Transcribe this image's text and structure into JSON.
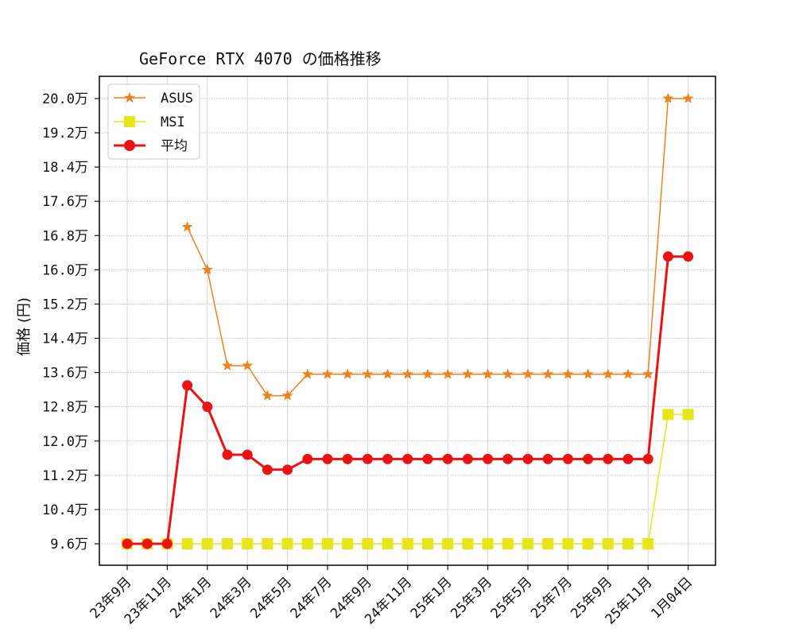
{
  "chart_data": {
    "type": "line",
    "title": "GeForce RTX 4070 の価格推移",
    "xlabel": "",
    "ylabel": "価格 (円)",
    "ylim": [
      9.1,
      20.5
    ],
    "y_unit": "万",
    "yticks": [
      9.6,
      10.4,
      11.2,
      12.0,
      12.8,
      13.6,
      14.4,
      15.2,
      16.0,
      16.8,
      17.6,
      18.4,
      19.2,
      20.0
    ],
    "ytick_labels": [
      "9.6万",
      "10.4万",
      "11.2万",
      "12.0万",
      "12.8万",
      "13.6万",
      "14.4万",
      "15.2万",
      "16.0万",
      "16.8万",
      "17.6万",
      "18.4万",
      "19.2万",
      "20.0万"
    ],
    "xtick_indices": [
      0,
      2,
      4,
      6,
      8,
      10,
      12,
      14,
      16,
      18,
      20,
      22,
      24,
      26,
      28
    ],
    "xtick_labels": [
      "23年9月",
      "23年11月",
      "24年1月",
      "24年3月",
      "24年5月",
      "24年7月",
      "24年9月",
      "24年11月",
      "25年1月",
      "25年3月",
      "25年5月",
      "25年7月",
      "25年9月",
      "25年11月",
      "1月04日"
    ],
    "x": [
      "23年9月",
      "23年10月",
      "23年11月",
      "23年12月",
      "24年1月",
      "24年2月",
      "24年3月",
      "24年4月",
      "24年5月",
      "24年6月",
      "24年7月",
      "24年8月",
      "24年9月",
      "24年10月",
      "24年11月",
      "24年12月",
      "25年1月",
      "25年2月",
      "25年3月",
      "25年4月",
      "25年5月",
      "25年6月",
      "25年7月",
      "25年8月",
      "25年9月",
      "25年10月",
      "25年11月",
      "25年12月",
      "1月04日"
    ],
    "x_positions": [
      160,
      185.2,
      210.4,
      235.6,
      260.8,
      286,
      311.2,
      336.4,
      361.6,
      386.8,
      412,
      437.2,
      462.4,
      487.6,
      512.8,
      538,
      563.2,
      588.4,
      613.6,
      638.8,
      664,
      689.2,
      714.4,
      739.6,
      764.8,
      790,
      815.2,
      840.4,
      865.6
    ],
    "series": [
      {
        "name": "ASUS",
        "color": "#f0821e",
        "marker": "star",
        "line_width": 1.5,
        "values": [
          null,
          null,
          null,
          17.0,
          16.0,
          13.76,
          13.76,
          13.06,
          13.06,
          13.56,
          13.56,
          13.56,
          13.56,
          13.56,
          13.56,
          13.56,
          13.56,
          13.56,
          13.56,
          13.56,
          13.56,
          13.56,
          13.56,
          13.56,
          13.56,
          13.56,
          13.56,
          20.0,
          20.0
        ]
      },
      {
        "name": "MSI",
        "color": "#e6e619",
        "marker": "square",
        "line_width": 1.5,
        "values": [
          9.6,
          9.6,
          9.6,
          9.6,
          9.6,
          9.6,
          9.6,
          9.6,
          9.6,
          9.6,
          9.6,
          9.6,
          9.6,
          9.6,
          9.6,
          9.6,
          9.6,
          9.6,
          9.6,
          9.6,
          9.6,
          9.6,
          9.6,
          9.6,
          9.6,
          9.6,
          9.6,
          12.62,
          12.62
        ]
      },
      {
        "name": "平均",
        "color": "#ee1111",
        "marker": "circle",
        "line_width": 3,
        "values": [
          9.6,
          9.6,
          9.6,
          13.3,
          12.8,
          11.68,
          11.68,
          11.33,
          11.33,
          11.58,
          11.58,
          11.58,
          11.58,
          11.58,
          11.58,
          11.58,
          11.58,
          11.58,
          11.58,
          11.58,
          11.58,
          11.58,
          11.58,
          11.58,
          11.58,
          11.58,
          11.58,
          16.31,
          16.31
        ]
      }
    ],
    "grid": true,
    "legend_position": "upper left"
  },
  "legend": {
    "items": [
      {
        "label": "ASUS"
      },
      {
        "label": "MSI"
      },
      {
        "label": "平均"
      }
    ]
  }
}
